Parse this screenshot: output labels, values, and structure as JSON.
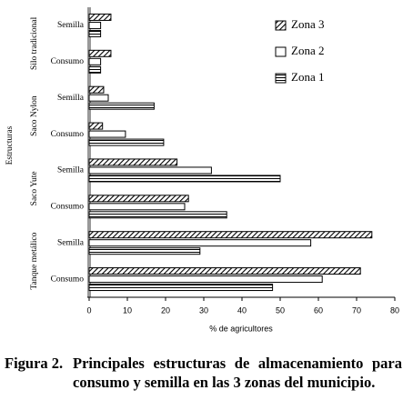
{
  "chart_data": {
    "type": "hbar",
    "ylabel": "Estructuras",
    "xlabel": "% de agricultores",
    "groups": [
      "Tanque metálico",
      "Saco Yute",
      "Saco Nylon",
      "Silo tradicional"
    ],
    "categories": [
      "Consumo",
      "Semilla",
      "Consumo",
      "Semilla",
      "Consumo",
      "Semilla",
      "Consumo",
      "Semilla"
    ],
    "series": [
      {
        "name": "Zona 3",
        "pattern": "diagonal",
        "color": "#000000",
        "values": [
          71,
          74,
          26,
          23,
          3.5,
          3.8,
          5.7,
          5.7
        ]
      },
      {
        "name": "Zona 2",
        "pattern": "none",
        "color": "#000000",
        "values": [
          61,
          58,
          25,
          32,
          9.5,
          5,
          3,
          3
        ]
      },
      {
        "name": "Zona 1",
        "pattern": "horizontal",
        "color": "#000000",
        "values": [
          48,
          29,
          36,
          50,
          19.5,
          17,
          3,
          3
        ]
      }
    ],
    "xlim": [
      0,
      80
    ],
    "xticks": [
      0,
      10,
      20,
      30,
      40,
      50,
      60,
      70,
      80
    ],
    "legend": "upper-right",
    "caption_label": "Figura 2.",
    "caption": "Principales estructuras de almacenamiento para consumo y semilla en las 3 zonas del municipio."
  }
}
